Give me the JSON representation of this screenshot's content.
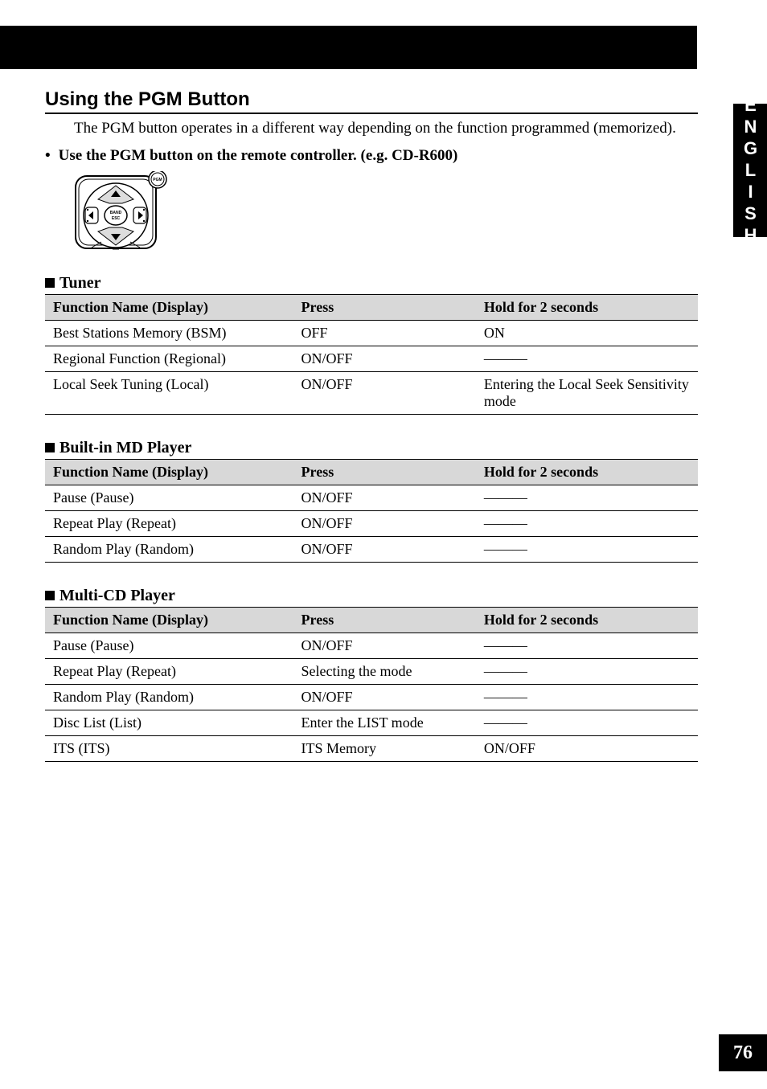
{
  "sideTab": "ENGLISH",
  "pageNumber": "76",
  "section": {
    "title": "Using the PGM Button",
    "intro": "The PGM button operates in a different way depending on the function programmed (memorized).",
    "bullet": "Use the PGM button on the remote controller. (e.g. CD-R600)"
  },
  "remoteLabels": {
    "pgm": "PGM",
    "band": "BAND",
    "esc": "ESC"
  },
  "columns": {
    "c1": "Function Name (Display)",
    "c2": "Press",
    "c3": "Hold for 2 seconds"
  },
  "tables": [
    {
      "heading": "Tuner",
      "rows": [
        {
          "name": "Best Stations Memory (BSM)",
          "press": "OFF",
          "hold": "ON"
        },
        {
          "name": "Regional Function (Regional)",
          "press": "ON/OFF",
          "hold": "———"
        },
        {
          "name": "Local Seek Tuning (Local)",
          "press": "ON/OFF",
          "hold": "Entering the Local Seek Sensitivity mode"
        }
      ]
    },
    {
      "heading": "Built-in MD Player",
      "rows": [
        {
          "name": "Pause (Pause)",
          "press": "ON/OFF",
          "hold": "———"
        },
        {
          "name": "Repeat Play (Repeat)",
          "press": "ON/OFF",
          "hold": "———"
        },
        {
          "name": "Random Play (Random)",
          "press": "ON/OFF",
          "hold": "———"
        }
      ]
    },
    {
      "heading": "Multi-CD Player",
      "rows": [
        {
          "name": "Pause (Pause)",
          "press": "ON/OFF",
          "hold": "———"
        },
        {
          "name": "Repeat Play (Repeat)",
          "press": "Selecting the mode",
          "hold": "———"
        },
        {
          "name": "Random Play (Random)",
          "press": "ON/OFF",
          "hold": "———"
        },
        {
          "name": "Disc List (List)",
          "press": "Enter the LIST mode",
          "hold": "———"
        },
        {
          "name": "ITS (ITS)",
          "press": "ITS Memory",
          "hold": "ON/OFF"
        }
      ]
    }
  ]
}
